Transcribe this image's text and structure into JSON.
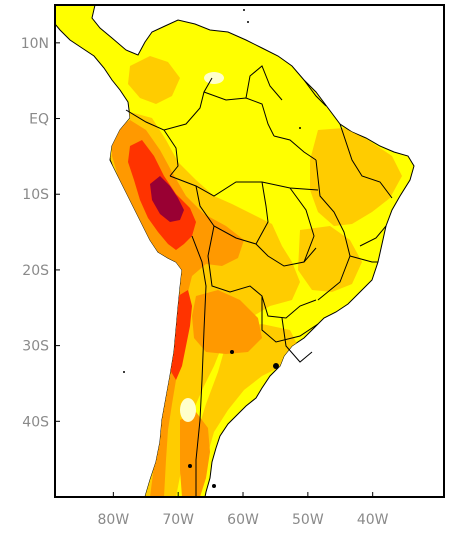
{
  "map": {
    "lat_ticks": [
      {
        "label": "10N",
        "lat": 10
      },
      {
        "label": "EQ",
        "lat": 0
      },
      {
        "label": "10S",
        "lat": -10
      },
      {
        "label": "20S",
        "lat": -20
      },
      {
        "label": "30S",
        "lat": -30
      },
      {
        "label": "40S",
        "lat": -40
      }
    ],
    "lon_ticks": [
      {
        "label": "80W",
        "lon": -80
      },
      {
        "label": "70W",
        "lon": -70
      },
      {
        "label": "60W",
        "lon": -60
      },
      {
        "label": "50W",
        "lon": -50
      },
      {
        "label": "40W",
        "lon": -40
      }
    ],
    "lon_range": [
      -89,
      -29
    ],
    "lat_range": [
      -50,
      15
    ],
    "colors": {
      "background": "#ffffff",
      "frame": "#000000",
      "level_1": "#ffff00",
      "level_2": "#ffcc00",
      "level_3": "#ff9900",
      "level_4": "#ff3300",
      "level_5": "#990033",
      "pale": "#ffffcc",
      "borders": "#000000"
    }
  }
}
